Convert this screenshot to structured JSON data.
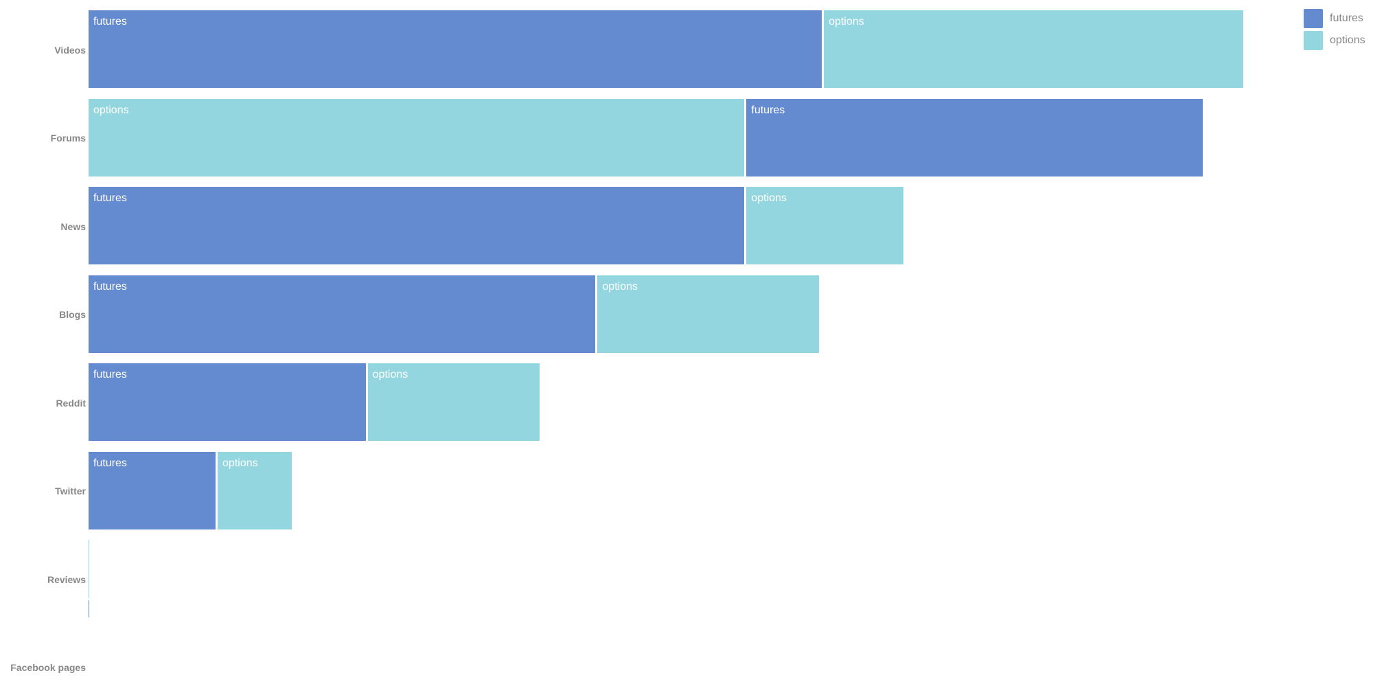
{
  "chart_data": {
    "type": "bar",
    "orientation": "horizontal",
    "stacked": true,
    "title": "",
    "xlabel": "",
    "ylabel": "",
    "xlim": [
      0,
      1000
    ],
    "categories": [
      "Videos",
      "Forums",
      "News",
      "Blogs",
      "Reddit",
      "Twitter",
      "Reviews",
      "Facebook pages"
    ],
    "series": [
      {
        "name": "futures",
        "color": "#648bd0",
        "values": [
          635,
          395,
          568,
          439,
          240,
          110,
          0.5,
          0
        ],
        "segment_label": "futures"
      },
      {
        "name": "options",
        "color": "#93d6df",
        "values": [
          363,
          568,
          136,
          192,
          149,
          64,
          0.5,
          0
        ],
        "segment_label": "options"
      }
    ],
    "segment_order": [
      [
        "futures",
        "options"
      ],
      [
        "options",
        "futures"
      ],
      [
        "futures",
        "options"
      ],
      [
        "futures",
        "options"
      ],
      [
        "futures",
        "options"
      ],
      [
        "futures",
        "options"
      ],
      [
        "options",
        "futures"
      ],
      [
        "futures",
        "options"
      ]
    ],
    "legend": {
      "position": "top-right",
      "items": [
        {
          "name": "futures",
          "color": "#648bd0"
        },
        {
          "name": "options",
          "color": "#93d6df"
        }
      ]
    },
    "grid": false
  }
}
